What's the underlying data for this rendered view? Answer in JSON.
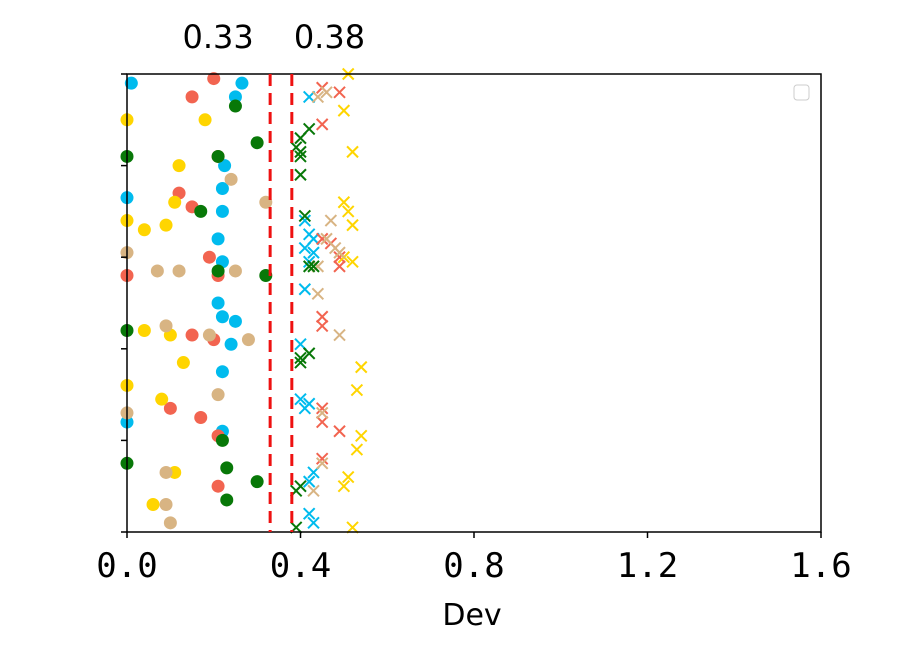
{
  "chart_data": {
    "type": "scatter",
    "xlabel": "Dev",
    "ylabel": "",
    "xlim": [
      0,
      1.6
    ],
    "xticks": [
      0,
      0.4,
      0.8,
      1.2,
      1.6
    ],
    "xtick_labels": [
      "0.0",
      "0.4",
      "0.8",
      "1.2",
      "1.6"
    ],
    "yticks_count": 6,
    "grid": false,
    "legend": "top-right (empty)",
    "thresholds": [
      {
        "x": 0.33,
        "label": "0.33",
        "color": "#ee1111",
        "style": "dashed"
      },
      {
        "x": 0.38,
        "label": "0.38",
        "color": "#ee1111",
        "style": "dashed"
      }
    ],
    "series": [
      {
        "marker": "circle",
        "color": "#00bbee",
        "points": [
          [
            0.01,
            0.98
          ],
          [
            0.265,
            0.98
          ],
          [
            0.25,
            0.95
          ],
          [
            0.225,
            0.8
          ],
          [
            0.22,
            0.75
          ],
          [
            0.0,
            0.73
          ],
          [
            0.22,
            0.7
          ],
          [
            0.21,
            0.64
          ],
          [
            0.22,
            0.59
          ],
          [
            0.21,
            0.5
          ],
          [
            0.22,
            0.47
          ],
          [
            0.25,
            0.46
          ],
          [
            0.24,
            0.41
          ],
          [
            0.22,
            0.35
          ],
          [
            0.0,
            0.24
          ],
          [
            0.22,
            0.22
          ]
        ]
      },
      {
        "marker": "circle",
        "color": "#f26450",
        "points": [
          [
            0.2,
            0.99
          ],
          [
            0.15,
            0.95
          ],
          [
            0.21,
            0.82
          ],
          [
            0.12,
            0.74
          ],
          [
            0.15,
            0.71
          ],
          [
            0.19,
            0.6
          ],
          [
            0.21,
            0.56
          ],
          [
            0.0,
            0.56
          ],
          [
            0.15,
            0.43
          ],
          [
            0.2,
            0.42
          ],
          [
            0.1,
            0.27
          ],
          [
            0.17,
            0.25
          ],
          [
            0.21,
            0.21
          ],
          [
            0.21,
            0.1
          ]
        ]
      },
      {
        "marker": "circle",
        "color": "#ffd500",
        "points": [
          [
            0.0,
            0.9
          ],
          [
            0.18,
            0.9
          ],
          [
            0.12,
            0.8
          ],
          [
            0.11,
            0.72
          ],
          [
            0.04,
            0.66
          ],
          [
            0.09,
            0.67
          ],
          [
            0.0,
            0.68
          ],
          [
            0.04,
            0.44
          ],
          [
            0.1,
            0.43
          ],
          [
            0.13,
            0.37
          ],
          [
            0.0,
            0.32
          ],
          [
            0.08,
            0.29
          ],
          [
            0.11,
            0.13
          ],
          [
            0.06,
            0.06
          ]
        ]
      },
      {
        "marker": "circle",
        "color": "#d8b483",
        "points": [
          [
            0.24,
            0.77
          ],
          [
            0.32,
            0.72
          ],
          [
            0.0,
            0.61
          ],
          [
            0.07,
            0.57
          ],
          [
            0.12,
            0.57
          ],
          [
            0.25,
            0.57
          ],
          [
            0.09,
            0.45
          ],
          [
            0.19,
            0.43
          ],
          [
            0.28,
            0.42
          ],
          [
            0.21,
            0.3
          ],
          [
            0.0,
            0.26
          ],
          [
            0.09,
            0.13
          ],
          [
            0.09,
            0.06
          ],
          [
            0.1,
            0.02
          ]
        ]
      },
      {
        "marker": "circle",
        "color": "#087808",
        "points": [
          [
            0.25,
            0.93
          ],
          [
            0.3,
            0.85
          ],
          [
            0.21,
            0.82
          ],
          [
            0.0,
            0.82
          ],
          [
            0.17,
            0.7
          ],
          [
            0.32,
            0.56
          ],
          [
            0.21,
            0.57
          ],
          [
            0.0,
            0.44
          ],
          [
            0.0,
            0.15
          ],
          [
            0.23,
            0.14
          ],
          [
            0.3,
            0.11
          ],
          [
            0.22,
            0.2
          ],
          [
            0.23,
            0.07
          ]
        ]
      },
      {
        "marker": "x",
        "color": "#00bbee",
        "points": [
          [
            0.42,
            0.95
          ],
          [
            0.41,
            0.68
          ],
          [
            0.42,
            0.65
          ],
          [
            0.43,
            0.64
          ],
          [
            0.43,
            0.61
          ],
          [
            0.41,
            0.62
          ],
          [
            0.42,
            0.59
          ],
          [
            0.41,
            0.53
          ],
          [
            0.4,
            0.41
          ],
          [
            0.4,
            0.29
          ],
          [
            0.42,
            0.28
          ],
          [
            0.41,
            0.27
          ],
          [
            0.43,
            0.13
          ],
          [
            0.42,
            0.11
          ],
          [
            0.42,
            0.04
          ],
          [
            0.43,
            0.02
          ]
        ]
      },
      {
        "marker": "x",
        "color": "#f26450",
        "points": [
          [
            0.45,
            0.97
          ],
          [
            0.49,
            0.96
          ],
          [
            0.45,
            0.89
          ],
          [
            0.45,
            0.64
          ],
          [
            0.47,
            0.63
          ],
          [
            0.49,
            0.6
          ],
          [
            0.49,
            0.58
          ],
          [
            0.45,
            0.47
          ],
          [
            0.45,
            0.45
          ],
          [
            0.45,
            0.27
          ],
          [
            0.45,
            0.24
          ],
          [
            0.49,
            0.22
          ],
          [
            0.45,
            0.16
          ]
        ]
      },
      {
        "marker": "x",
        "color": "#ffd500",
        "points": [
          [
            0.51,
            1.0
          ],
          [
            0.5,
            0.92
          ],
          [
            0.52,
            0.83
          ],
          [
            0.5,
            0.72
          ],
          [
            0.51,
            0.7
          ],
          [
            0.52,
            0.67
          ],
          [
            0.5,
            0.6
          ],
          [
            0.52,
            0.59
          ],
          [
            0.54,
            0.36
          ],
          [
            0.53,
            0.31
          ],
          [
            0.54,
            0.21
          ],
          [
            0.53,
            0.18
          ],
          [
            0.51,
            0.12
          ],
          [
            0.5,
            0.1
          ],
          [
            0.52,
            0.01
          ]
        ]
      },
      {
        "marker": "x",
        "color": "#d8b483",
        "points": [
          [
            0.46,
            0.96
          ],
          [
            0.44,
            0.95
          ],
          [
            0.47,
            0.68
          ],
          [
            0.46,
            0.64
          ],
          [
            0.48,
            0.62
          ],
          [
            0.49,
            0.61
          ],
          [
            0.44,
            0.58
          ],
          [
            0.44,
            0.52
          ],
          [
            0.49,
            0.43
          ],
          [
            0.45,
            0.26
          ],
          [
            0.45,
            0.15
          ],
          [
            0.43,
            0.09
          ]
        ]
      },
      {
        "marker": "x",
        "color": "#087808",
        "points": [
          [
            0.42,
            0.88
          ],
          [
            0.4,
            0.86
          ],
          [
            0.39,
            0.84
          ],
          [
            0.4,
            0.83
          ],
          [
            0.4,
            0.82
          ],
          [
            0.4,
            0.78
          ],
          [
            0.41,
            0.69
          ],
          [
            0.43,
            0.58
          ],
          [
            0.42,
            0.58
          ],
          [
            0.42,
            0.39
          ],
          [
            0.4,
            0.38
          ],
          [
            0.4,
            0.37
          ],
          [
            0.4,
            0.1
          ],
          [
            0.39,
            0.09
          ],
          [
            0.39,
            0.01
          ]
        ]
      }
    ]
  }
}
